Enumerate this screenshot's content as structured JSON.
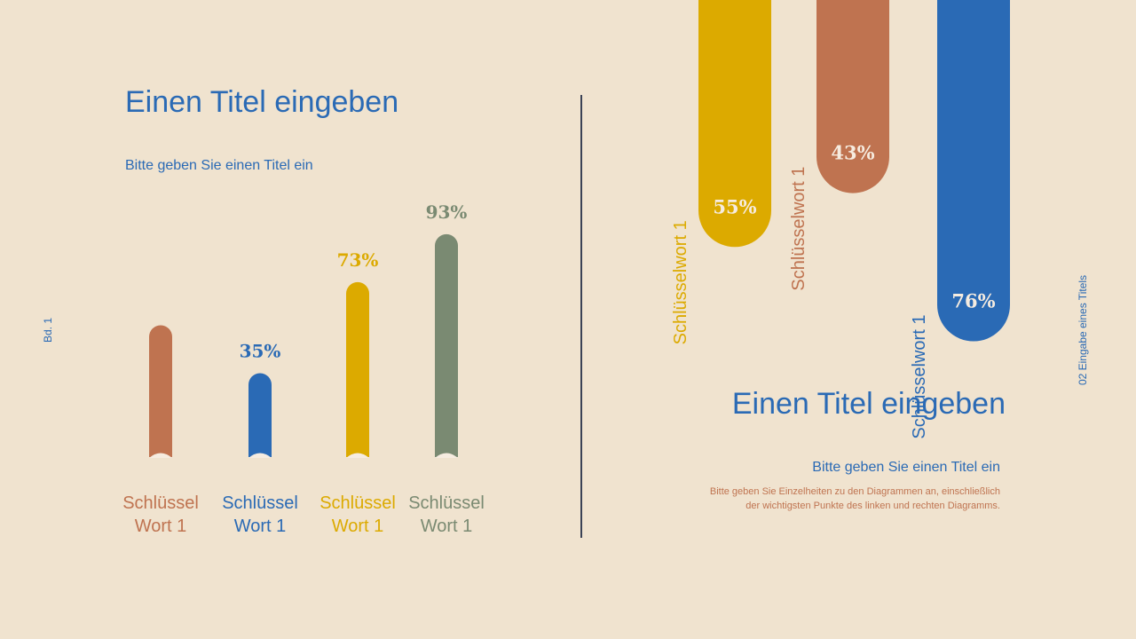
{
  "page": {
    "side_label": "Bd. 1",
    "footer_label": "02 Eingabe eines Titels"
  },
  "chart_data": [
    {
      "type": "bar",
      "title": "Einen Titel eingeben",
      "subtitle": "Bitte geben Sie einen Titel ein",
      "categories": [
        "Schlüssel Wort 1",
        "Schlüssel Wort 1",
        "Schlüssel Wort 1",
        "Schlüssel Wort 1"
      ],
      "values": [
        55,
        35,
        73,
        93
      ],
      "value_labels": [
        null,
        "35%",
        "73%",
        "93%"
      ],
      "colors": [
        "#bf7350",
        "#2a6ab5",
        "#dcaa00",
        "#7a8a72"
      ]
    },
    {
      "type": "bar",
      "title": "Einen Titel eingeben",
      "subtitle": "Bitte geben Sie einen Titel ein",
      "description": [
        "Bitte geben Sie Einzelheiten zu den Diagrammen an, einschließlich",
        "der wichtigsten Punkte des linken und rechten Diagramms."
      ],
      "categories": [
        "Schlüsselwort 1",
        "Schlüsselwort 1",
        "Schlüsselwort 1"
      ],
      "values": [
        55,
        43,
        76
      ],
      "value_labels": [
        "55%",
        "43%",
        "76%"
      ],
      "colors": [
        "#dcaa00",
        "#bf7350",
        "#2a6ab5"
      ]
    }
  ]
}
